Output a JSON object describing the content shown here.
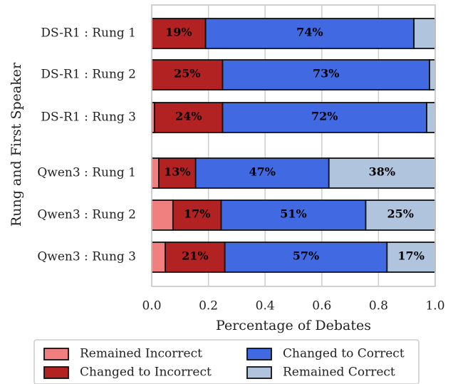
{
  "chart_data": {
    "type": "bar",
    "orientation": "horizontal",
    "stacked": true,
    "ylabel": "Rung and First Speaker",
    "xlabel": "Percentage of Debates",
    "xlim": [
      0.0,
      1.0
    ],
    "xticks": [
      "0.0",
      "0.2",
      "0.4",
      "0.6",
      "0.8",
      "1.0"
    ],
    "grid": true,
    "legend_position": "bottom",
    "categories": [
      "DS-R1 : Rung 1",
      "DS-R1 : Rung 2",
      "DS-R1 : Rung 3",
      "Qwen3 : Rung 1",
      "Qwen3 : Rung 2",
      "Qwen3 : Rung 3"
    ],
    "series": [
      {
        "name": "Remained Incorrect",
        "color": "#f08080",
        "values": [
          0.0,
          0.0,
          0.01,
          0.025,
          0.075,
          0.048
        ],
        "labels": [
          "",
          "",
          "",
          "",
          "",
          ""
        ]
      },
      {
        "name": "Changed to Incorrect",
        "color": "#b22222",
        "values": [
          0.19,
          0.25,
          0.24,
          0.13,
          0.17,
          0.21
        ],
        "labels": [
          "19%",
          "25%",
          "24%",
          "13%",
          "17%",
          "21%"
        ]
      },
      {
        "name": "Changed to Correct",
        "color": "#4169e1",
        "values": [
          0.735,
          0.73,
          0.72,
          0.47,
          0.51,
          0.572
        ],
        "labels": [
          "74%",
          "73%",
          "72%",
          "47%",
          "51%",
          "57%"
        ]
      },
      {
        "name": "Remained Correct",
        "color": "#b0c4de",
        "values": [
          0.075,
          0.02,
          0.03,
          0.375,
          0.245,
          0.17
        ],
        "labels": [
          "",
          "",
          "",
          "38%",
          "25%",
          "17%"
        ]
      }
    ]
  }
}
